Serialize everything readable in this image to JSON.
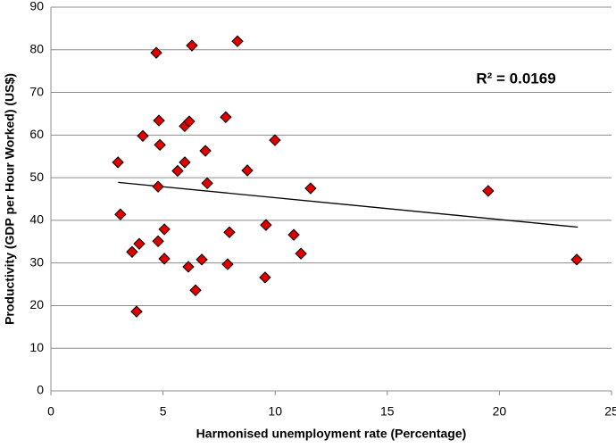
{
  "chart_data": {
    "type": "scatter",
    "xlabel": "Harmonised unemployment rate (Percentage)",
    "ylabel": "Productivity (GDP per Hour Worked) (US$)",
    "annotation": "R² = 0.0169",
    "color": "#e00000",
    "grid": true,
    "xlim": [
      0,
      25
    ],
    "xticks": [
      0,
      5,
      10,
      15,
      20,
      25
    ],
    "ylim": [
      0,
      90
    ],
    "yticks": [
      0,
      10,
      20,
      30,
      40,
      50,
      60,
      70,
      80,
      90
    ],
    "x": [
      2.99,
      3.1,
      3.94,
      3.62,
      3.82,
      4.1,
      4.7,
      4.82,
      4.86,
      4.78,
      4.78,
      5.06,
      5.06,
      5.65,
      5.97,
      5.97,
      6.17,
      6.29,
      6.13,
      6.45,
      6.73,
      6.89,
      6.97,
      7.8,
      7.96,
      7.88,
      8.32,
      8.76,
      9.59,
      9.55,
      9.99,
      10.83,
      11.15,
      11.58,
      19.5,
      23.45
    ],
    "values": [
      53.6,
      41.4,
      34.5,
      32.6,
      18.6,
      59.8,
      79.3,
      63.4,
      57.7,
      47.9,
      35.1,
      37.9,
      31.0,
      51.6,
      53.6,
      62.1,
      63.2,
      81.0,
      29.1,
      23.6,
      30.8,
      56.3,
      48.7,
      64.2,
      37.2,
      29.7,
      82.0,
      51.7,
      38.9,
      26.6,
      58.8,
      36.6,
      32.2,
      47.5,
      46.9,
      30.8
    ],
    "trendline": {
      "x": [
        3,
        23.5
      ],
      "values": [
        48.9,
        38.4
      ]
    }
  }
}
